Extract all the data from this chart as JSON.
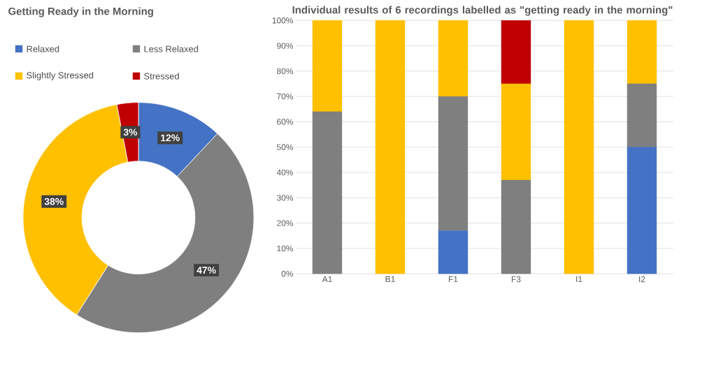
{
  "chart_data": [
    {
      "type": "donut",
      "title": "Getting Ready in the Morning",
      "categories": [
        "Relaxed",
        "Less Relaxed",
        "Slightly Stressed",
        "Stressed"
      ],
      "values": [
        12,
        47,
        38,
        3
      ],
      "value_labels": [
        "12%",
        "47%",
        "38%",
        "3%"
      ],
      "colors": [
        "#4472c4",
        "#7f7f7f",
        "#ffc000",
        "#c00000"
      ],
      "legend": "top"
    },
    {
      "type": "bar",
      "stacked": true,
      "title": "Individual results of 6 recordings labelled as \"getting ready in the morning\"",
      "categories": [
        "A1",
        "B1",
        "F1",
        "F3",
        "I1",
        "I2"
      ],
      "series": [
        {
          "color": "#4472c4",
          "values": [
            0,
            0,
            17,
            0,
            0,
            50
          ]
        },
        {
          "color": "#7f7f7f",
          "values": [
            64,
            0,
            53,
            37,
            0,
            25
          ]
        },
        {
          "color": "#ffc000",
          "values": [
            36,
            100,
            30,
            38,
            100,
            25
          ]
        },
        {
          "color": "#c00000",
          "values": [
            0,
            0,
            0,
            25,
            0,
            0
          ]
        }
      ],
      "ylim": [
        0,
        100
      ],
      "yticks": [
        {
          "value": 0,
          "label": "0%"
        },
        {
          "value": 10,
          "label": "10%"
        },
        {
          "value": 20,
          "label": "20%"
        },
        {
          "value": 30,
          "label": "30%"
        },
        {
          "value": 40,
          "label": "40%"
        },
        {
          "value": 50,
          "label": "50%"
        },
        {
          "value": 60,
          "label": "60%"
        },
        {
          "value": 70,
          "label": "70%"
        },
        {
          "value": 80,
          "label": "80%"
        },
        {
          "value": 90,
          "label": "90%"
        },
        {
          "value": 100,
          "label": "100%"
        }
      ],
      "grid": "y"
    }
  ]
}
